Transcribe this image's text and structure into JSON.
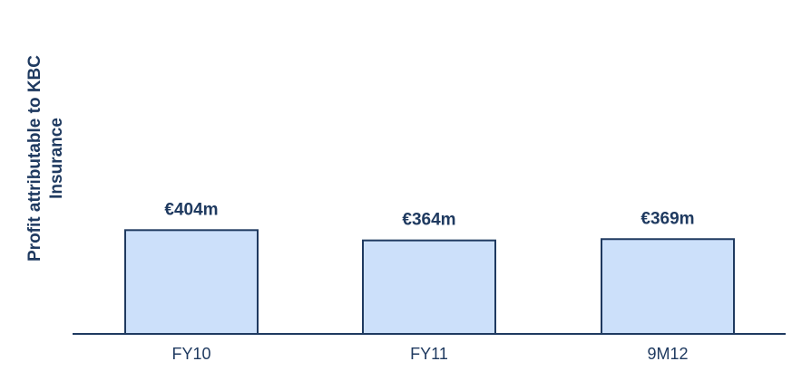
{
  "chart_data": {
    "type": "bar",
    "ylabel_lines": [
      "Profit attributable to KBC",
      "Insurance"
    ],
    "categories": [
      "FY10",
      "FY11",
      "9M12"
    ],
    "values": [
      404,
      364,
      369
    ],
    "data_labels": [
      "€404m",
      "€364m",
      "€369m"
    ],
    "ylim": [
      0,
      1300
    ],
    "grid": false,
    "colors": {
      "bar_fill": "#cce0fa",
      "bar_stroke": "#1f3a60",
      "axis": "#1f3a60",
      "label_text": "#1f3a60"
    }
  }
}
